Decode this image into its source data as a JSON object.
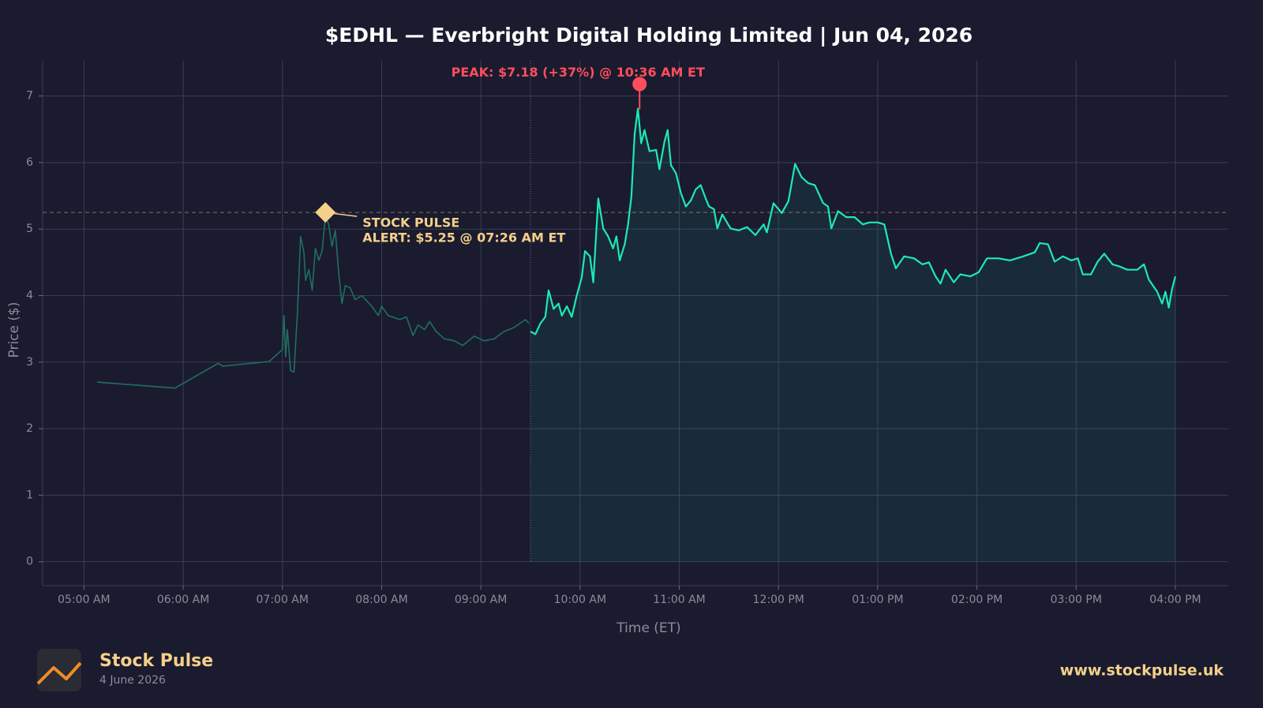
{
  "chart_data": {
    "type": "line",
    "title": "$EDHL — Everbright Digital Holding Limited  |  Jun 04, 2026",
    "x_label": "Time (ET)",
    "y_label": "Price ($)",
    "xlim": [
      "04:35",
      "16:32"
    ],
    "ylim": [
      -0.36,
      7.53
    ],
    "xticks": [
      {
        "value": "05:00",
        "label": "05:00 AM"
      },
      {
        "value": "06:00",
        "label": "06:00 AM"
      },
      {
        "value": "07:00",
        "label": "07:00 AM"
      },
      {
        "value": "08:00",
        "label": "08:00 AM"
      },
      {
        "value": "09:00",
        "label": "09:00 AM"
      },
      {
        "value": "10:00",
        "label": "10:00 AM"
      },
      {
        "value": "11:00",
        "label": "11:00 AM"
      },
      {
        "value": "12:00",
        "label": "12:00 PM"
      },
      {
        "value": "13:00",
        "label": "01:00 PM"
      },
      {
        "value": "14:00",
        "label": "02:00 PM"
      },
      {
        "value": "15:00",
        "label": "03:00 PM"
      },
      {
        "value": "16:00",
        "label": "04:00 PM"
      }
    ],
    "yticks": [
      0,
      1,
      2,
      3,
      4,
      5,
      6,
      7
    ],
    "grid": true,
    "series": [
      {
        "color": "#1f6f62",
        "fill": false,
        "x": [
          "05:08",
          "05:55",
          "06:21",
          "06:24",
          "06:52",
          "07:00",
          "07:01",
          "07:02",
          "07:03",
          "07:05",
          "07:07",
          "07:09",
          "07:11",
          "07:13",
          "07:14",
          "07:16",
          "07:18",
          "07:20",
          "07:22",
          "07:24",
          "07:26",
          "07:28",
          "07:30",
          "07:32",
          "07:34",
          "07:36",
          "07:38",
          "07:41",
          "07:44",
          "07:48",
          "07:54",
          "07:58",
          "08:00",
          "08:04",
          "08:11",
          "08:15",
          "08:19",
          "08:22",
          "08:26",
          "08:29",
          "08:33",
          "08:38",
          "08:44",
          "08:49",
          "08:56",
          "09:02",
          "09:08",
          "09:14",
          "09:20",
          "09:27",
          "09:29"
        ],
        "values": [
          2.7,
          2.61,
          2.98,
          2.94,
          3.01,
          3.19,
          3.7,
          3.08,
          3.49,
          2.87,
          2.85,
          3.7,
          4.89,
          4.65,
          4.23,
          4.39,
          4.08,
          4.71,
          4.53,
          4.67,
          5.18,
          5.07,
          4.74,
          4.98,
          4.35,
          3.88,
          4.15,
          4.12,
          3.94,
          4.0,
          3.84,
          3.7,
          3.84,
          3.7,
          3.64,
          3.68,
          3.4,
          3.56,
          3.49,
          3.61,
          3.46,
          3.35,
          3.32,
          3.25,
          3.39,
          3.32,
          3.35,
          3.46,
          3.52,
          3.64,
          3.58
        ]
      },
      {
        "color": "#1de9b6",
        "fill": true,
        "x": [
          "09:30",
          "09:33",
          "09:36",
          "09:39",
          "09:41",
          "09:44",
          "09:47",
          "09:49",
          "09:52",
          "09:55",
          "09:58",
          "10:01",
          "10:03",
          "10:06",
          "10:08",
          "10:11",
          "10:14",
          "10:17",
          "10:20",
          "10:22",
          "10:24",
          "10:27",
          "10:29",
          "10:31",
          "10:33",
          "10:35",
          "10:37",
          "10:39",
          "10:42",
          "10:46",
          "10:48",
          "10:51",
          "10:53",
          "10:55",
          "10:58",
          "11:01",
          "11:04",
          "11:07",
          "11:10",
          "11:13",
          "11:16",
          "11:18",
          "11:21",
          "11:23",
          "11:26",
          "11:31",
          "11:36",
          "11:41",
          "11:46",
          "11:51",
          "11:53",
          "11:57",
          "12:02",
          "12:06",
          "12:10",
          "12:14",
          "12:18",
          "12:22",
          "12:27",
          "12:30",
          "12:32",
          "12:36",
          "12:41",
          "12:46",
          "12:51",
          "12:55",
          "13:00",
          "13:04",
          "13:08",
          "13:11",
          "13:16",
          "13:22",
          "13:27",
          "13:31",
          "13:35",
          "13:38",
          "13:41",
          "13:46",
          "13:50",
          "13:56",
          "14:01",
          "14:06",
          "14:13",
          "14:20",
          "14:28",
          "14:35",
          "14:38",
          "14:43",
          "14:47",
          "14:52",
          "14:57",
          "15:01",
          "15:04",
          "15:09",
          "15:13",
          "15:17",
          "15:22",
          "15:26",
          "15:31",
          "15:37",
          "15:41",
          "15:44",
          "15:49",
          "15:52",
          "15:54",
          "15:56",
          "15:58",
          "16:00"
        ],
        "values": [
          3.46,
          3.42,
          3.58,
          3.68,
          4.08,
          3.8,
          3.88,
          3.7,
          3.84,
          3.68,
          4.0,
          4.27,
          4.67,
          4.59,
          4.2,
          5.46,
          5.01,
          4.89,
          4.71,
          4.89,
          4.53,
          4.77,
          5.07,
          5.48,
          6.43,
          6.81,
          6.29,
          6.49,
          6.17,
          6.19,
          5.9,
          6.31,
          6.49,
          5.96,
          5.84,
          5.54,
          5.34,
          5.43,
          5.6,
          5.66,
          5.46,
          5.34,
          5.3,
          5.01,
          5.22,
          5.01,
          4.98,
          5.03,
          4.91,
          5.07,
          4.95,
          5.39,
          5.24,
          5.42,
          5.98,
          5.78,
          5.69,
          5.66,
          5.39,
          5.34,
          5.01,
          5.27,
          5.18,
          5.18,
          5.07,
          5.1,
          5.1,
          5.07,
          4.63,
          4.41,
          4.59,
          4.56,
          4.47,
          4.5,
          4.29,
          4.18,
          4.39,
          4.2,
          4.32,
          4.29,
          4.35,
          4.56,
          4.56,
          4.53,
          4.59,
          4.65,
          4.79,
          4.77,
          4.51,
          4.59,
          4.53,
          4.56,
          4.32,
          4.32,
          4.51,
          4.63,
          4.47,
          4.44,
          4.39,
          4.39,
          4.47,
          4.24,
          4.06,
          3.88,
          4.06,
          3.82,
          4.1,
          4.29
        ]
      }
    ],
    "peak": {
      "x": "10:36",
      "value": 7.18,
      "color": "#ff4d5e",
      "label": "PEAK: $7.18 (+37%) @ 10:36 AM ET"
    },
    "alert": {
      "x": "07:26",
      "value": 5.25,
      "color": "#f5d08a",
      "label_lines": [
        "STOCK PULSE",
        "ALERT: $5.25 @ 07:26 AM ET"
      ]
    }
  },
  "footer": {
    "brand": "Stock Pulse",
    "date": "4 June 2026",
    "url": "www.stockpulse.uk"
  }
}
